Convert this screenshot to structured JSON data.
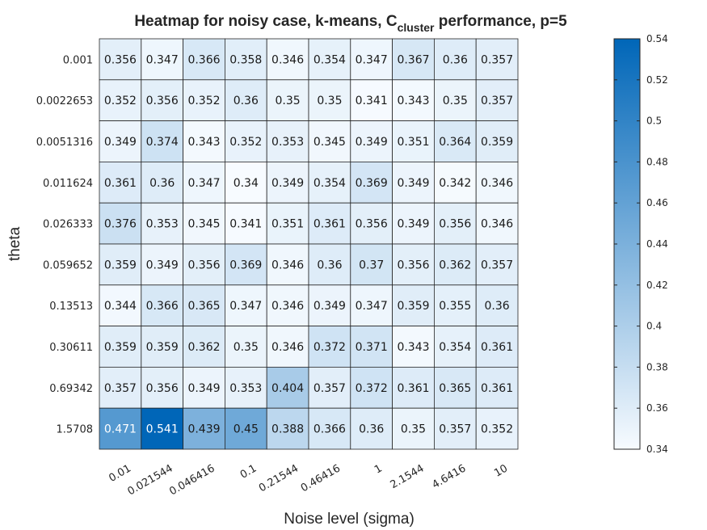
{
  "chart_data": {
    "type": "heatmap",
    "title": {
      "prefix": "Heatmap for noisy case, k-means, C",
      "subscript": "cluster",
      "suffix": " performance, p=5"
    },
    "xlabel": "Noise level (sigma)",
    "ylabel": "theta",
    "x_categories": [
      "0.01",
      "0.021544",
      "0.046416",
      "0.1",
      "0.21544",
      "0.46416",
      "1",
      "2.1544",
      "4.6416",
      "10"
    ],
    "y_categories": [
      "0.001",
      "0.0022653",
      "0.0051316",
      "0.011624",
      "0.026333",
      "0.059652",
      "0.13513",
      "0.30611",
      "0.69342",
      "1.5708"
    ],
    "values": [
      [
        0.356,
        0.347,
        0.366,
        0.358,
        0.346,
        0.354,
        0.347,
        0.367,
        0.36,
        0.357
      ],
      [
        0.352,
        0.356,
        0.352,
        0.36,
        0.35,
        0.35,
        0.341,
        0.343,
        0.35,
        0.357
      ],
      [
        0.349,
        0.374,
        0.343,
        0.352,
        0.353,
        0.345,
        0.349,
        0.351,
        0.364,
        0.359
      ],
      [
        0.361,
        0.36,
        0.347,
        0.34,
        0.349,
        0.354,
        0.369,
        0.349,
        0.342,
        0.346
      ],
      [
        0.376,
        0.353,
        0.345,
        0.341,
        0.351,
        0.361,
        0.356,
        0.349,
        0.356,
        0.346
      ],
      [
        0.359,
        0.349,
        0.356,
        0.369,
        0.346,
        0.36,
        0.37,
        0.356,
        0.362,
        0.357
      ],
      [
        0.344,
        0.366,
        0.365,
        0.347,
        0.346,
        0.349,
        0.347,
        0.359,
        0.355,
        0.36
      ],
      [
        0.359,
        0.359,
        0.362,
        0.35,
        0.346,
        0.372,
        0.371,
        0.343,
        0.354,
        0.361
      ],
      [
        0.357,
        0.356,
        0.349,
        0.353,
        0.404,
        0.357,
        0.372,
        0.361,
        0.365,
        0.361
      ],
      [
        0.471,
        0.541,
        0.439,
        0.45,
        0.388,
        0.366,
        0.36,
        0.35,
        0.357,
        0.352
      ]
    ],
    "colorbar": {
      "range": [
        0.34,
        0.54
      ],
      "ticks": [
        "0.34",
        "0.36",
        "0.38",
        "0.4",
        "0.42",
        "0.44",
        "0.46",
        "0.48",
        "0.5",
        "0.52",
        "0.54"
      ],
      "color_low": "#f7fbff",
      "color_high": "#0066b8"
    },
    "grid": "cell-borders"
  }
}
